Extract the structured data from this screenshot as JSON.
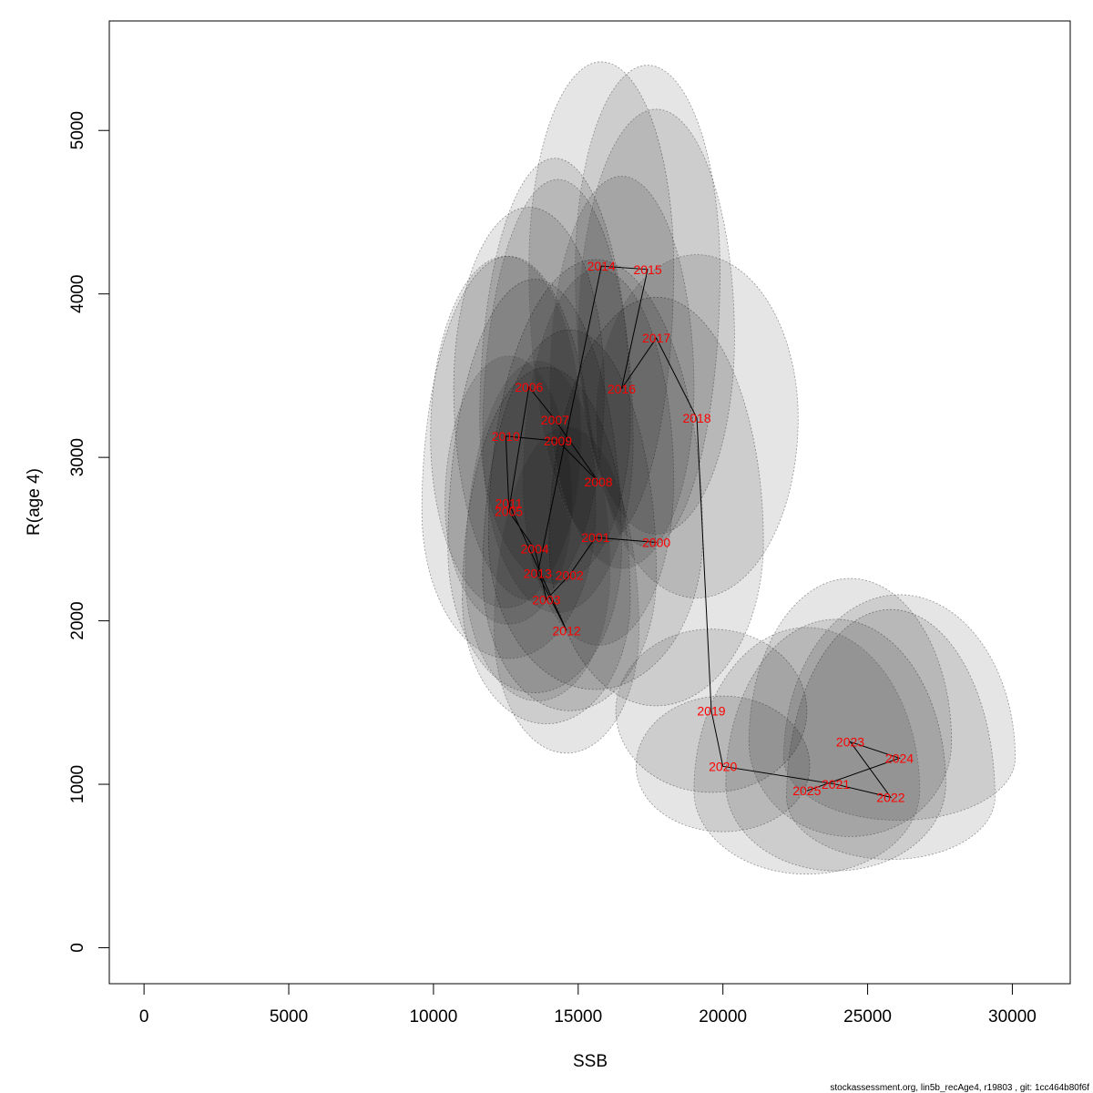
{
  "chart_data": {
    "type": "scatter",
    "xlabel": "SSB",
    "ylabel": "R(age 4)",
    "xlim": [
      -1200,
      32000
    ],
    "ylim": [
      -220,
      5670
    ],
    "x_ticks": [
      0,
      5000,
      10000,
      15000,
      20000,
      25000,
      30000
    ],
    "y_ticks": [
      0,
      1000,
      2000,
      3000,
      4000,
      5000
    ],
    "footer": "stockassessment.org, lin5b_recAge4, r19803 , git: 1cc464b80f6f",
    "path_order": [
      "2000",
      "2001",
      "2002",
      "2003",
      "2004",
      "2005",
      "2006",
      "2007",
      "2008",
      "2009",
      "2010",
      "2011",
      "2012",
      "2013",
      "2014",
      "2015",
      "2016",
      "2017",
      "2018",
      "2019",
      "2020",
      "2021",
      "2022",
      "2023",
      "2024",
      "2025"
    ],
    "points": [
      {
        "year": "2000",
        "ssb": 17700,
        "rec": 2480,
        "sx": 3700,
        "sup": 1500,
        "sdown": 1000
      },
      {
        "year": "2001",
        "ssb": 15600,
        "rec": 2510,
        "sx": 3700,
        "sup": 1700,
        "sdown": 930
      },
      {
        "year": "2002",
        "ssb": 14700,
        "rec": 2280,
        "sx": 3000,
        "sup": 1500,
        "sdown": 830
      },
      {
        "year": "2003",
        "ssb": 13900,
        "rec": 2130,
        "sx": 2900,
        "sup": 1420,
        "sdown": 760
      },
      {
        "year": "2004",
        "ssb": 13500,
        "rec": 2440,
        "sx": 3000,
        "sup": 1650,
        "sdown": 880
      },
      {
        "year": "2005",
        "ssb": 12600,
        "rec": 2670,
        "sx": 3000,
        "sup": 1560,
        "sdown": 900
      },
      {
        "year": "2006",
        "ssb": 13300,
        "rec": 3430,
        "sx": 2600,
        "sup": 1100,
        "sdown": 1300
      },
      {
        "year": "2007",
        "ssb": 14200,
        "rec": 3230,
        "sx": 2600,
        "sup": 1600,
        "sdown": 1000
      },
      {
        "year": "2008",
        "ssb": 15700,
        "rec": 2850,
        "sx": 2600,
        "sup": 1300,
        "sdown": 1000
      },
      {
        "year": "2009",
        "ssb": 14300,
        "rec": 3100,
        "sx": 2600,
        "sup": 1600,
        "sdown": 1050
      },
      {
        "year": "2010",
        "ssb": 12500,
        "rec": 3130,
        "sx": 2600,
        "sup": 1100,
        "sdown": 1050
      },
      {
        "year": "2011",
        "ssb": 12600,
        "rec": 2720,
        "sx": 2200,
        "sup": 900,
        "sdown": 740
      },
      {
        "year": "2012",
        "ssb": 14600,
        "rec": 1940,
        "sx": 2500,
        "sup": 1250,
        "sdown": 750
      },
      {
        "year": "2013",
        "ssb": 13600,
        "rec": 2290,
        "sx": 2500,
        "sup": 1300,
        "sdown": 780
      },
      {
        "year": "2014",
        "ssb": 15800,
        "rec": 4170,
        "sx": 2500,
        "sup": 1250,
        "sdown": 1700
      },
      {
        "year": "2015",
        "ssb": 17400,
        "rec": 4150,
        "sx": 2500,
        "sup": 1250,
        "sdown": 1700
      },
      {
        "year": "2016",
        "ssb": 16500,
        "rec": 3420,
        "sx": 2500,
        "sup": 1300,
        "sdown": 1100
      },
      {
        "year": "2017",
        "ssb": 17700,
        "rec": 3730,
        "sx": 2700,
        "sup": 1400,
        "sdown": 1200
      },
      {
        "year": "2018",
        "ssb": 19100,
        "rec": 3240,
        "sx": 3500,
        "sup": 1000,
        "sdown": 1100
      },
      {
        "year": "2019",
        "ssb": 19600,
        "rec": 1450,
        "sx": 3300,
        "sup": 500,
        "sdown": 500
      },
      {
        "year": "2020",
        "ssb": 20000,
        "rec": 1110,
        "sx": 3000,
        "sup": 430,
        "sdown": 400
      },
      {
        "year": "2021",
        "ssb": 23900,
        "rec": 1000,
        "sx": 3800,
        "sup": 1010,
        "sdown": 530
      },
      {
        "year": "2022",
        "ssb": 25800,
        "rec": 920,
        "sx": 3600,
        "sup": 1150,
        "sdown": 380
      },
      {
        "year": "2023",
        "ssb": 24400,
        "rec": 1260,
        "sx": 3500,
        "sup": 1000,
        "sdown": 580
      },
      {
        "year": "2024",
        "ssb": 26100,
        "rec": 1160,
        "sx": 4000,
        "sup": 1000,
        "sdown": 380
      },
      {
        "year": "2025",
        "ssb": 22900,
        "rec": 960,
        "sx": 3900,
        "sup": 1000,
        "sdown": 510
      }
    ]
  }
}
